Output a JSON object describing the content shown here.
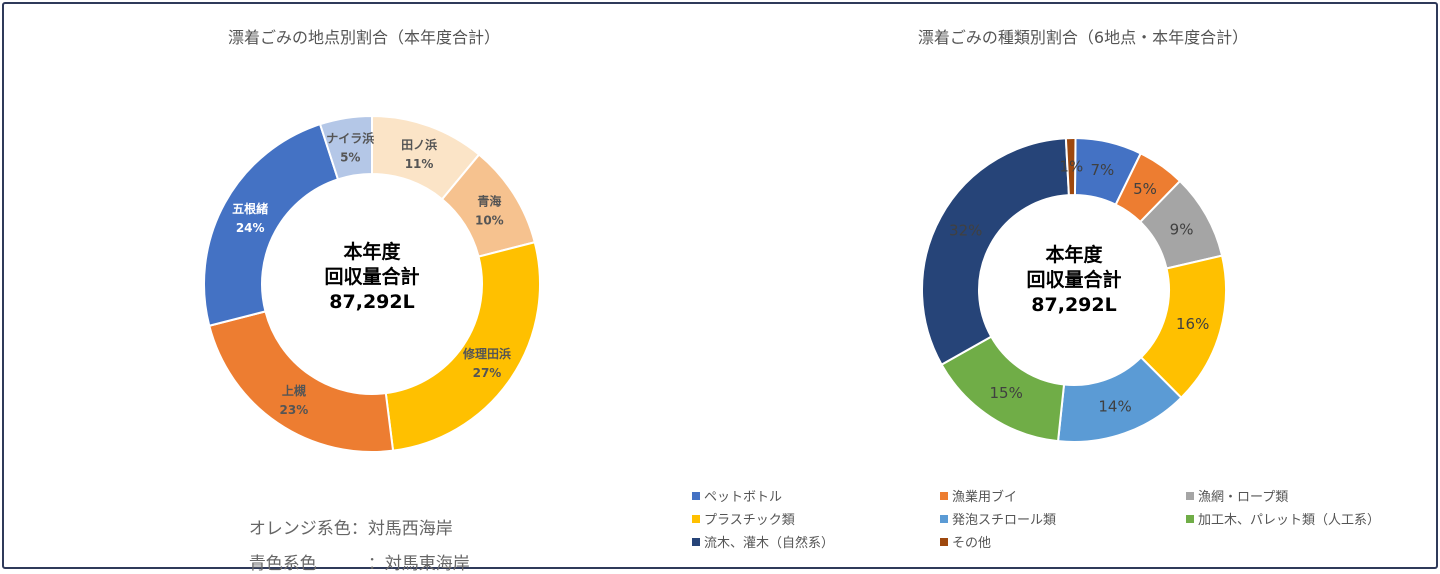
{
  "center_text": [
    "本年度",
    "回収量合計",
    "87,292L"
  ],
  "notes": [
    {
      "label": "オレンジ系色",
      "value": "対馬西海岸"
    },
    {
      "label": "青色系色",
      "value": "対馬東海岸"
    }
  ],
  "notes_separator": "：",
  "chart_data": [
    {
      "type": "pie",
      "title": "漂着ごみの地点別割合（本年度合計）",
      "donut": true,
      "categories": [
        "田ノ浜",
        "青海",
        "修理田浜",
        "上槻",
        "五根緒",
        "ナイラ浜"
      ],
      "values": [
        11,
        10,
        27,
        23,
        24,
        5
      ],
      "labels": [
        "11%",
        "10%",
        "27%",
        "23%",
        "24%",
        "5%"
      ],
      "colors": [
        "#fbe4c7",
        "#f6c28f",
        "#ffc000",
        "#ed7d31",
        "#4472c4",
        "#b4c7e7"
      ],
      "label_text_color": [
        "dark",
        "dark",
        "dark",
        "dark",
        "light",
        "dark"
      ]
    },
    {
      "type": "pie",
      "title": "漂着ごみの種類別割合（6地点・本年度合計）",
      "donut": true,
      "categories": [
        "ペットボトル",
        "漁業用ブイ",
        "漁網・ロープ類",
        "プラスチック類",
        "発泡スチロール類",
        "加工木、パレット類（人工系）",
        "流木、灌木（自然系）",
        "その他"
      ],
      "values": [
        7,
        5,
        9,
        16,
        14,
        15,
        32,
        1
      ],
      "labels": [
        "7%",
        "5%",
        "9%",
        "16%",
        "14%",
        "15%",
        "32%",
        "1%"
      ],
      "colors": [
        "#4472c4",
        "#ed7d31",
        "#a5a5a5",
        "#ffc000",
        "#5b9bd5",
        "#70ad47",
        "#264478",
        "#9e480e"
      ],
      "legend_placement": "bottom"
    }
  ]
}
